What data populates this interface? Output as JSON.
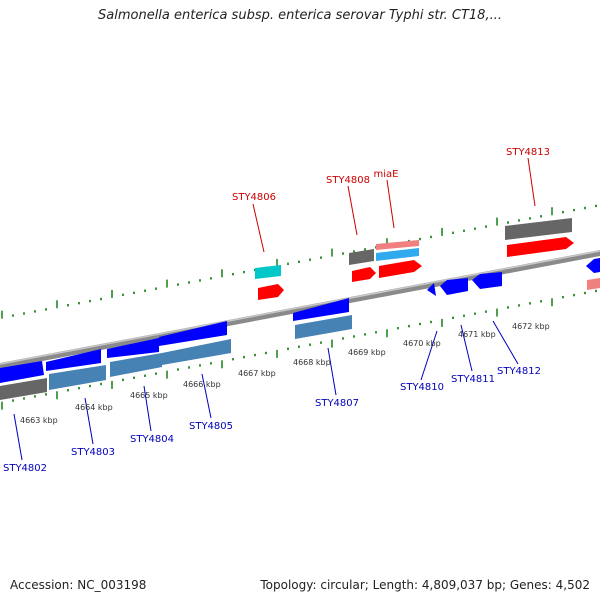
{
  "title": "Salmonella enterica subsp. enterica serovar Typhi str. CT18,...",
  "footer": {
    "accession": "Accession: NC_003198",
    "topology": "Topology: circular; Length: 4,809,037 bp; Genes: 4,502"
  },
  "colors": {
    "backbone": "#8a8a8a",
    "forward_label": "#cc0000",
    "reverse_label": "#0000bb",
    "tick": "#228822",
    "red": "#ff0000",
    "pink": "#f08080",
    "cyan": "#00c8c8",
    "skyblue": "#30aaee",
    "gray": "#666666",
    "blue": "#0000ff",
    "steel": "#4682b4"
  },
  "scale_labels": [
    {
      "text": "4663 kbp",
      "pos": 4663
    },
    {
      "text": "4664 kbp",
      "pos": 4664
    },
    {
      "text": "4665 kbp",
      "pos": 4665
    },
    {
      "text": "4666 kbp",
      "pos": 4666
    },
    {
      "text": "4667 kbp",
      "pos": 4667
    },
    {
      "text": "4668 kbp",
      "pos": 4668
    },
    {
      "text": "4669 kbp",
      "pos": 4669
    },
    {
      "text": "4670 kbp",
      "pos": 4670
    },
    {
      "text": "4671 kbp",
      "pos": 4671
    },
    {
      "text": "4672 kbp",
      "pos": 4672
    }
  ],
  "forward_labels": [
    {
      "text": "STY4806",
      "pos": 4667.5
    },
    {
      "text": "STY4808",
      "pos": 4668.7
    },
    {
      "text": "miaE",
      "pos": 4669.1
    },
    {
      "text": "STY4813",
      "pos": 4671.9
    }
  ],
  "reverse_labels": [
    {
      "text": "STY4802",
      "pos": 4662.8
    },
    {
      "text": "STY4803",
      "pos": 4664.0
    },
    {
      "text": "STY4804",
      "pos": 4664.9
    },
    {
      "text": "STY4805",
      "pos": 4665.7
    },
    {
      "text": "STY4807",
      "pos": 4668.4
    },
    {
      "text": "STY4810",
      "pos": 4670.1
    },
    {
      "text": "STY4811",
      "pos": 4670.7
    },
    {
      "text": "STY4812",
      "pos": 4671.1
    }
  ]
}
